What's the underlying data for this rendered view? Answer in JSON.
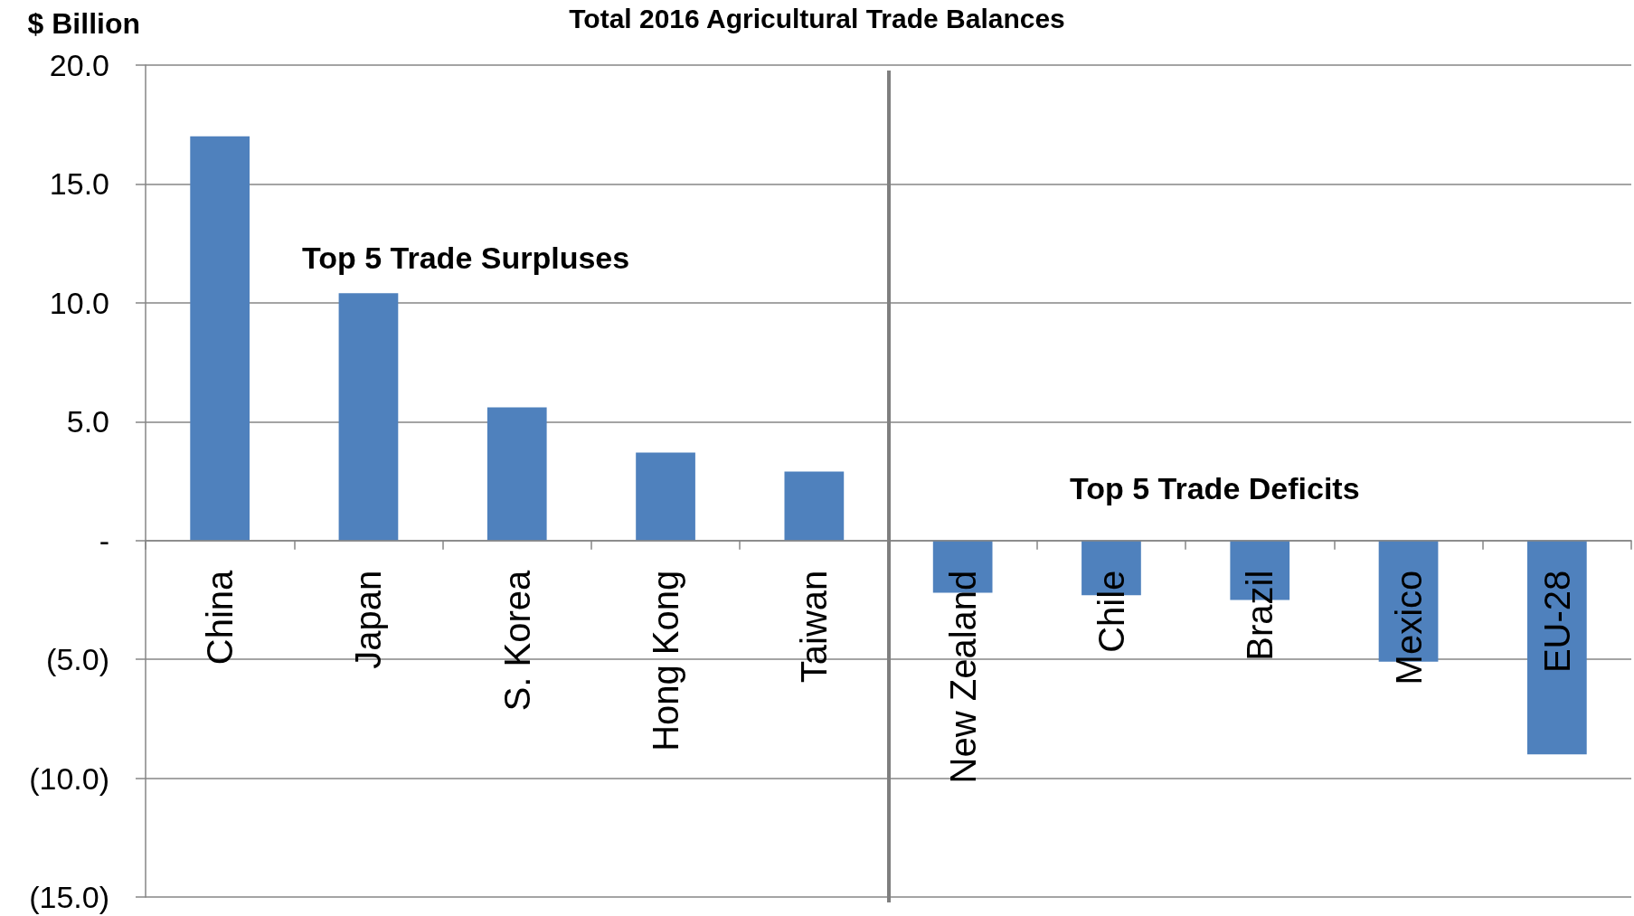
{
  "chart_data": {
    "type": "bar",
    "title": "Total 2016 Agricultural Trade Balances",
    "ylabel": "$ Billion",
    "categories": [
      "China",
      "Japan",
      "S. Korea",
      "Hong Kong",
      "Taiwan",
      "New Zealand",
      "Chile",
      "Brazil",
      "Mexico",
      "EU-28"
    ],
    "values": [
      17.0,
      10.4,
      5.6,
      3.7,
      2.9,
      -2.2,
      -2.3,
      -2.5,
      -5.1,
      -9.0
    ],
    "color": "#4f81bd",
    "ylim": [
      -15,
      20
    ],
    "yticks": [
      {
        "value": -15,
        "label": "(15.0)"
      },
      {
        "value": -10,
        "label": "(10.0)"
      },
      {
        "value": -5,
        "label": "(5.0)"
      },
      {
        "value": 0,
        "label": "-"
      },
      {
        "value": 5,
        "label": "5.0"
      },
      {
        "value": 10,
        "label": "10.0"
      },
      {
        "value": 15,
        "label": "15.0"
      },
      {
        "value": 20,
        "label": "20.0"
      }
    ],
    "grid": "y",
    "annotations": [
      "Top 5 Trade Surpluses",
      "Top 5 Trade Deficits"
    ]
  }
}
